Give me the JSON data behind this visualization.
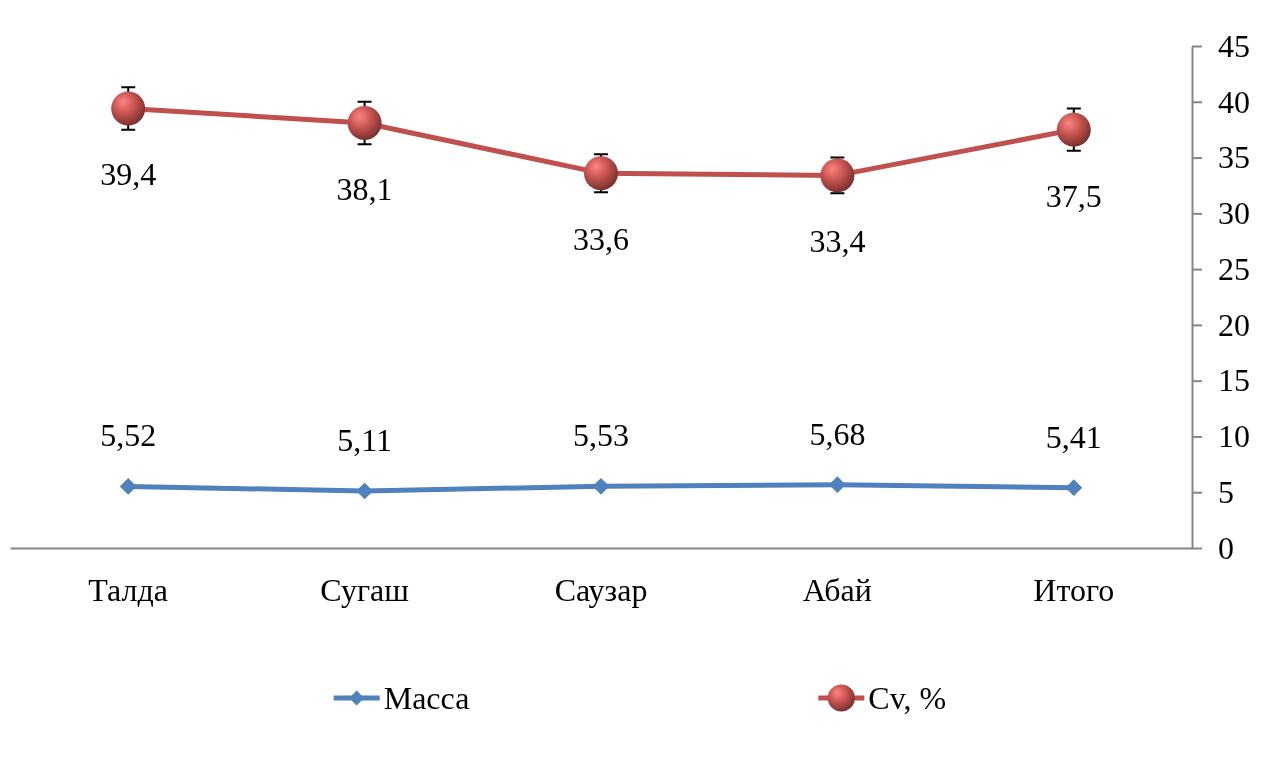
{
  "chart_data": {
    "type": "line",
    "categories": [
      "Талда",
      "Сугаш",
      "Саузар",
      "Абай",
      "Итого"
    ],
    "series": [
      {
        "name": "Масса",
        "color": "#4f81bd",
        "values": [
          5.52,
          5.11,
          5.53,
          5.68,
          5.41
        ],
        "value_labels": [
          "5,52",
          "5,11",
          "5,53",
          "5,68",
          "5,41"
        ],
        "marker": "diamond",
        "axis": "y2"
      },
      {
        "name": "Cv, %",
        "color": "#c0504d",
        "values": [
          39.4,
          38.1,
          33.6,
          33.4,
          37.5
        ],
        "value_labels": [
          "39,4",
          "38,1",
          "33,6",
          "33,4",
          "37,5"
        ],
        "errors": [
          1.9,
          1.9,
          1.7,
          1.6,
          1.9
        ],
        "marker": "circle",
        "axis": "y2"
      }
    ],
    "y2lim": [
      0,
      45
    ],
    "y2ticks": [
      0,
      5,
      10,
      15,
      20,
      25,
      30,
      35,
      40,
      45
    ],
    "legend": "bottom"
  }
}
